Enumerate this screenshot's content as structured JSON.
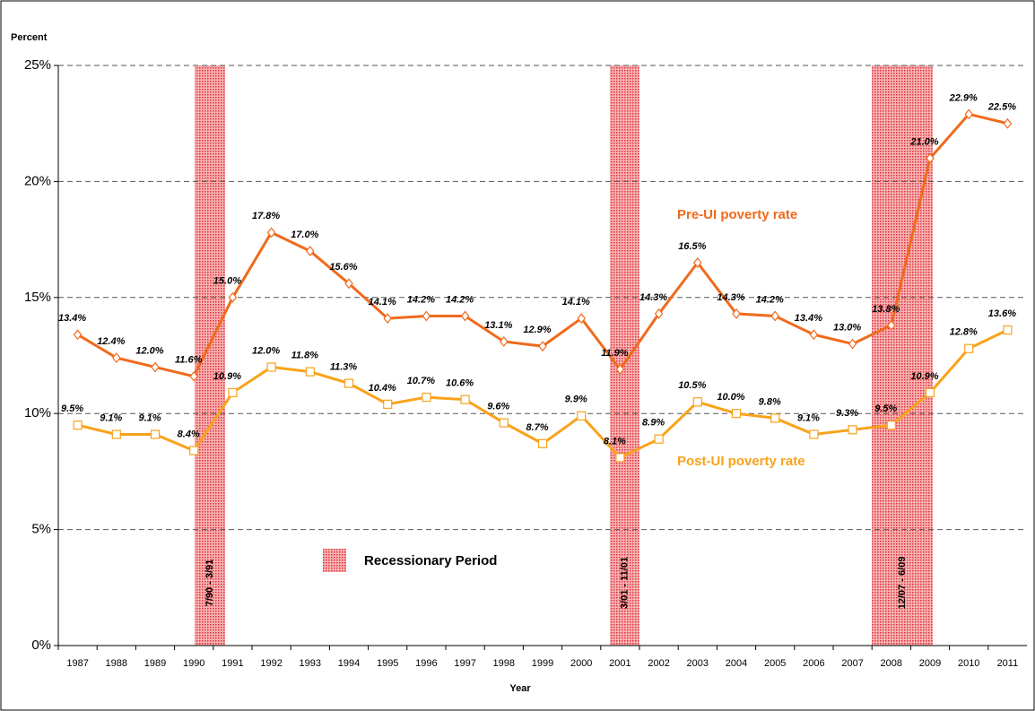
{
  "chart_data": {
    "type": "line",
    "y_axis_label": "Percent",
    "x_axis_label": "Year",
    "categories": [
      "1987",
      "1988",
      "1989",
      "1990",
      "1991",
      "1992",
      "1993",
      "1994",
      "1995",
      "1996",
      "1997",
      "1998",
      "1999",
      "2000",
      "2001",
      "2002",
      "2003",
      "2004",
      "2005",
      "2006",
      "2007",
      "2008",
      "2009",
      "2010",
      "2011"
    ],
    "series": [
      {
        "name": "Pre-UI poverty rate",
        "color": "#f06a1c",
        "values": [
          13.4,
          12.4,
          12.0,
          11.6,
          15.0,
          17.8,
          17.0,
          15.6,
          14.1,
          14.2,
          14.2,
          13.1,
          12.9,
          14.1,
          11.9,
          14.3,
          16.5,
          14.3,
          14.2,
          13.4,
          13.0,
          13.8,
          21.0,
          22.9,
          22.5
        ],
        "value_labels": [
          "13.4%",
          "12.4%",
          "12.0%",
          "11.6%",
          "15.0%",
          "17.8%",
          "17.0%",
          "15.6%",
          "14.1%",
          "14.2%",
          "14.2%",
          "13.1%",
          "12.9%",
          "14.1%",
          "11.9%",
          "14.3%",
          "16.5%",
          "14.3%",
          "14.2%",
          "13.4%",
          "13.0%",
          "13.8%",
          "21.0%",
          "22.9%",
          "22.5%"
        ]
      },
      {
        "name": "Post-UI poverty rate",
        "color": "#f9a21b",
        "values": [
          9.5,
          9.1,
          9.1,
          8.4,
          10.9,
          12.0,
          11.8,
          11.3,
          10.4,
          10.7,
          10.6,
          9.6,
          8.7,
          9.9,
          8.1,
          8.9,
          10.5,
          10.0,
          9.8,
          9.1,
          9.3,
          9.5,
          10.9,
          12.8,
          13.6
        ],
        "value_labels": [
          "9.5%",
          "9.1%",
          "9.1%",
          "8.4%",
          "10.9%",
          "12.0%",
          "11.8%",
          "11.3%",
          "10.4%",
          "10.7%",
          "10.6%",
          "9.6%",
          "8.7%",
          "9.9%",
          "8.1%",
          "8.9%",
          "10.5%",
          "10.0%",
          "9.8%",
          "9.1%",
          "9.3%",
          "9.5%",
          "10.9%",
          "12.8%",
          "13.6%"
        ]
      }
    ],
    "recession_legend": "Recessionary Period",
    "recessions": [
      "7/90 - 3/91",
      "3/01 - 11/01",
      "12/07 - 6/09"
    ],
    "ylim": [
      0,
      25
    ],
    "yticks": [
      {
        "value": 0,
        "label": "0%"
      },
      {
        "value": 5,
        "label": "5%"
      },
      {
        "value": 10,
        "label": "10%"
      },
      {
        "value": 15,
        "label": "15%"
      },
      {
        "value": 20,
        "label": "20%"
      },
      {
        "value": 25,
        "label": "25%"
      }
    ],
    "grid": true
  }
}
